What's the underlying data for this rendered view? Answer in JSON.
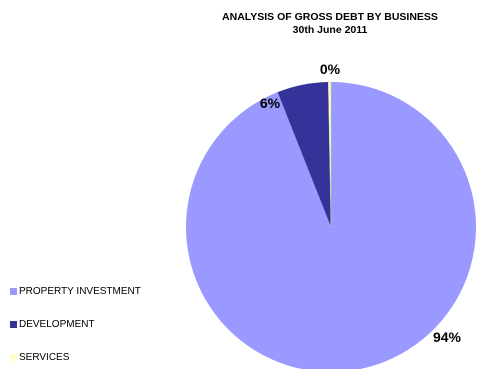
{
  "chart_data": {
    "type": "pie",
    "title": "ANALYSIS OF GROSS DEBT BY BUSINESS",
    "subtitle": "30th June 2011",
    "legend_position": "left-bottom",
    "slices": [
      {
        "label": "PROPERTY INVESTMENT",
        "value": 94,
        "display": "94%",
        "color": "#9999FF"
      },
      {
        "label": "DEVELOPMENT",
        "value": 5.7,
        "display": "6%",
        "color": "#333399"
      },
      {
        "label": "SERVICES",
        "value": 0.3,
        "display": "0%",
        "color": "#FFFFCC"
      }
    ]
  }
}
